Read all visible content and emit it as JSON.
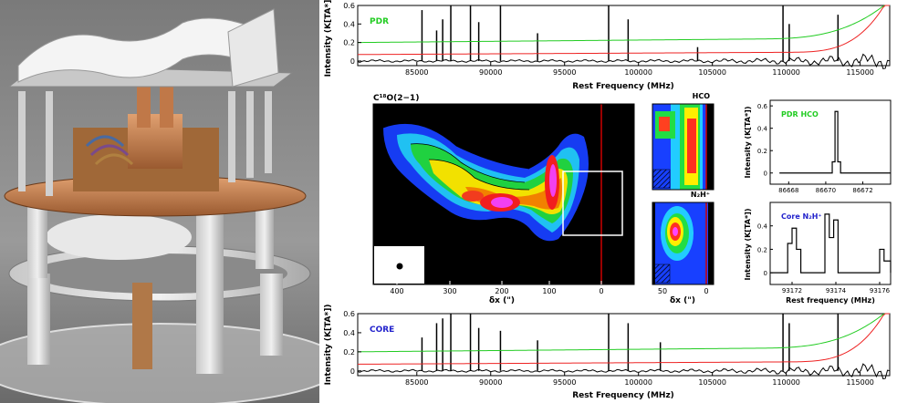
{
  "photo": {
    "alt": "Receiver hardware photograph"
  },
  "spectrum_top": {
    "label": "PDR",
    "label_color": "#22cc22"
  },
  "spectrum_bottom": {
    "label": "CORE",
    "label_color": "#2222cc"
  },
  "map_main": {
    "title": "C¹⁸O(2−1)",
    "xlabel": "δx (\")",
    "ticks": [
      "400",
      "300",
      "200",
      "100",
      "0"
    ]
  },
  "map_hco": {
    "title": "HCO"
  },
  "map_n2h": {
    "title": "N₂H⁺",
    "xlabel": "δx (\")",
    "ticks": [
      "50",
      "0"
    ]
  },
  "line_hco": {
    "label": "PDR HCO",
    "label_color": "#22cc22",
    "xticks": [
      "86668",
      "86670",
      "86672"
    ]
  },
  "line_n2h": {
    "label": "Core N₂H⁺",
    "label_color": "#2222cc",
    "xlabel": "Rest frequency (MHz)",
    "xticks": [
      "93172",
      "93174",
      "93176"
    ]
  },
  "chart_data": [
    {
      "type": "line",
      "title": "PDR",
      "xlabel": "Rest Frequency (MHz)",
      "ylabel": "Intensity (K[TA*])",
      "xlim": [
        81000,
        117000
      ],
      "ylim": [
        -0.05,
        0.6
      ],
      "xticks": [
        85000,
        90000,
        95000,
        100000,
        105000,
        110000,
        115000
      ],
      "yticks": [
        0,
        0.2,
        0.4,
        0.6
      ],
      "lines": [
        {
          "freq": 85350,
          "y": 0.55
        },
        {
          "freq": 86340,
          "y": 0.33
        },
        {
          "freq": 86750,
          "y": 0.45
        },
        {
          "freq": 87300,
          "y": 0.6
        },
        {
          "freq": 88630,
          "y": 0.6
        },
        {
          "freq": 89190,
          "y": 0.42
        },
        {
          "freq": 90660,
          "y": 0.6
        },
        {
          "freq": 93170,
          "y": 0.3
        },
        {
          "freq": 97980,
          "y": 0.6
        },
        {
          "freq": 99300,
          "y": 0.45
        },
        {
          "freq": 104000,
          "y": 0.15
        },
        {
          "freq": 109780,
          "y": 0.6
        },
        {
          "freq": 110200,
          "y": 0.4
        },
        {
          "freq": 113500,
          "y": 0.5
        }
      ],
      "series": [
        {
          "color": "#22cc22"
        },
        {
          "color": "#ee2222"
        }
      ]
    },
    {
      "type": "line",
      "title": "CORE",
      "xlabel": "Rest Frequency (MHz)",
      "ylabel": "Intensity (K[TA*])",
      "xlim": [
        81000,
        117000
      ],
      "ylim": [
        -0.05,
        0.6
      ],
      "xticks": [
        85000,
        90000,
        95000,
        100000,
        105000,
        110000,
        115000
      ],
      "yticks": [
        0,
        0.2,
        0.4,
        0.6
      ],
      "lines": [
        {
          "freq": 85350,
          "y": 0.35
        },
        {
          "freq": 86340,
          "y": 0.5
        },
        {
          "freq": 86750,
          "y": 0.55
        },
        {
          "freq": 87300,
          "y": 0.6
        },
        {
          "freq": 88630,
          "y": 0.6
        },
        {
          "freq": 89190,
          "y": 0.45
        },
        {
          "freq": 90660,
          "y": 0.42
        },
        {
          "freq": 93170,
          "y": 0.32
        },
        {
          "freq": 97980,
          "y": 0.6
        },
        {
          "freq": 99300,
          "y": 0.5
        },
        {
          "freq": 101480,
          "y": 0.3
        },
        {
          "freq": 109780,
          "y": 0.6
        },
        {
          "freq": 110200,
          "y": 0.5
        },
        {
          "freq": 113500,
          "y": 0.6
        }
      ],
      "series": [
        {
          "color": "#22cc22"
        },
        {
          "color": "#ee2222"
        }
      ]
    },
    {
      "type": "line",
      "title": "PDR HCO",
      "xlabel": "",
      "ylabel": "Intensity (K[TA*])",
      "xlim": [
        86667,
        86673.5
      ],
      "ylim": [
        -0.1,
        0.65
      ],
      "xticks": [
        86668,
        86670,
        86672
      ],
      "yticks": [
        0,
        0.2,
        0.4,
        0.6
      ],
      "x": [
        86667.5,
        86670.2,
        86670.35,
        86670.5,
        86670.65,
        86670.8,
        86671,
        86673.5
      ],
      "values": [
        0.0,
        0.0,
        0.1,
        0.55,
        0.1,
        0.0,
        0.0,
        0.0
      ]
    },
    {
      "type": "line",
      "title": "Core N₂H⁺",
      "xlabel": "Rest frequency (MHz)",
      "ylabel": "Intensity (K[TA*])",
      "xlim": [
        93171,
        93176.5
      ],
      "ylim": [
        -0.1,
        0.6
      ],
      "xticks": [
        93172,
        93174,
        93176
      ],
      "yticks": [
        0,
        0.2,
        0.4
      ],
      "x": [
        93171,
        93171.7,
        93171.8,
        93172.0,
        93172.2,
        93172.4,
        93173.3,
        93173.5,
        93173.7,
        93173.9,
        93174.1,
        93175.8,
        93176.0,
        93176.2,
        93176.5
      ],
      "values": [
        0.0,
        0.0,
        0.25,
        0.38,
        0.2,
        0.0,
        0.0,
        0.5,
        0.3,
        0.45,
        0.0,
        0.0,
        0.2,
        0.1,
        0.0
      ]
    }
  ]
}
